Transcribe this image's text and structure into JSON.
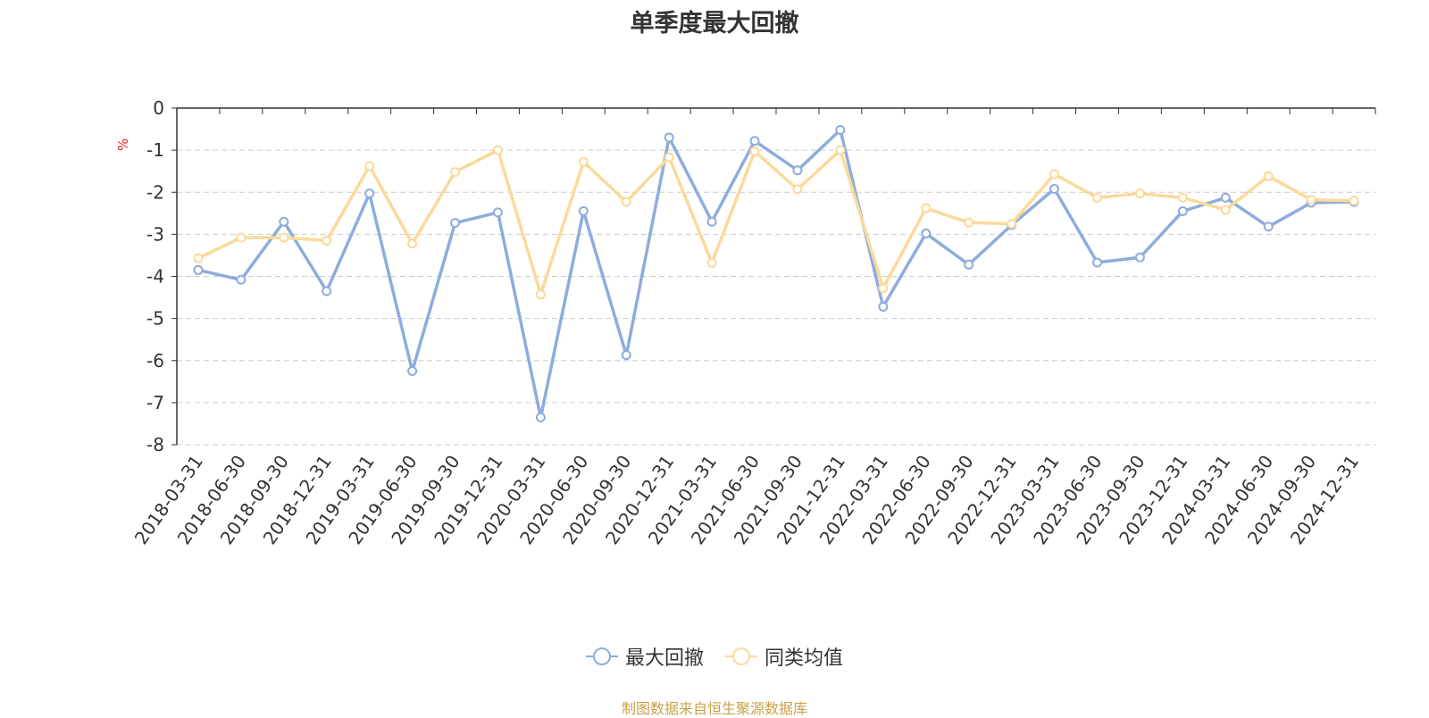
{
  "chart_data": {
    "type": "line",
    "title": "单季度最大回撤",
    "ylabel": "%",
    "xlabel": "",
    "ylim": [
      -8,
      0
    ],
    "yticks": [
      0,
      -1,
      -2,
      -3,
      -4,
      -5,
      -6,
      -7,
      -8
    ],
    "grid": true,
    "legend_position": "bottom-center",
    "categories": [
      "2018-03-31",
      "2018-06-30",
      "2018-09-30",
      "2018-12-31",
      "2019-03-31",
      "2019-06-30",
      "2019-09-30",
      "2019-12-31",
      "2020-03-31",
      "2020-06-30",
      "2020-09-30",
      "2020-12-31",
      "2021-03-31",
      "2021-06-30",
      "2021-09-30",
      "2021-12-31",
      "2022-03-31",
      "2022-06-30",
      "2022-09-30",
      "2022-12-31",
      "2023-03-31",
      "2023-06-30",
      "2023-09-30",
      "2023-12-31",
      "2024-03-31",
      "2024-06-30",
      "2024-09-30",
      "2024-12-31"
    ],
    "series": [
      {
        "name": "最大回撤",
        "color": "#8eacdc",
        "values": [
          -3.85,
          -4.08,
          -2.7,
          -4.35,
          -2.03,
          -6.25,
          -2.73,
          -2.48,
          -7.35,
          -2.45,
          -5.87,
          -0.7,
          -2.7,
          -0.78,
          -1.48,
          -0.52,
          -4.72,
          -2.98,
          -3.72,
          -2.78,
          -1.92,
          -3.67,
          -3.55,
          -2.45,
          -2.13,
          -2.82,
          -2.25,
          -2.23
        ]
      },
      {
        "name": "同类均值",
        "color": "#fcd99a",
        "values": [
          -3.57,
          -3.08,
          -3.08,
          -3.15,
          -1.38,
          -3.22,
          -1.52,
          -1.0,
          -4.43,
          -1.28,
          -2.23,
          -1.17,
          -3.68,
          -1.03,
          -1.93,
          -1.0,
          -4.28,
          -2.38,
          -2.72,
          -2.75,
          -1.57,
          -2.13,
          -2.03,
          -2.13,
          -2.42,
          -1.62,
          -2.18,
          -2.2
        ]
      }
    ]
  },
  "footer": "制图数据来自恒生聚源数据库"
}
